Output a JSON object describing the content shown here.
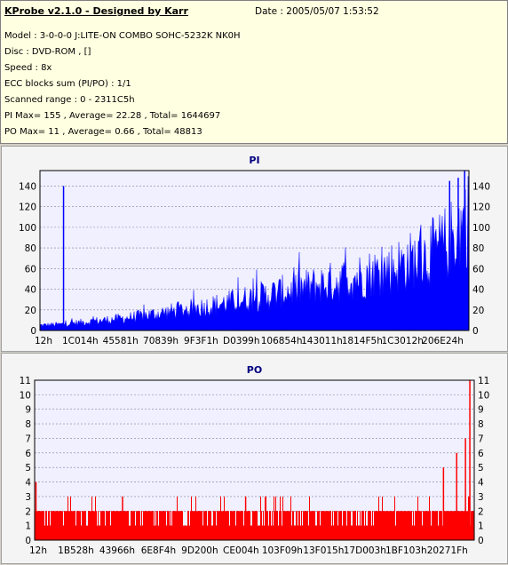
{
  "header": {
    "title": "KProbe v2.1.0 - Designed by Karr",
    "date": "Date : 2005/05/07 1:53:52",
    "model": "Model : 3-0-0-0 J:LITE-ON COMBO SOHC-5232K NK0H",
    "disc": "Disc : DVD-ROM ,  []",
    "speed": "Speed : 8x",
    "ecc": "ECC blocks sum (PI/PO) : 1/1",
    "range": "Scanned range : 0 - 2311C5h",
    "pi_summary": "PI Max= 155 , Average= 22.28 , Total= 1644697",
    "po_summary": "PO Max= 11 , Average= 0.66 , Total= 48813"
  },
  "chart_data": [
    {
      "type": "area",
      "title": "PI",
      "color": "#0000ff",
      "ylim": [
        0,
        155
      ],
      "yticks": [
        0,
        20,
        40,
        60,
        80,
        100,
        120,
        140
      ],
      "xtick_labels": [
        "12h",
        "1C014h",
        "45581h",
        "70839h",
        "9F3F1h",
        "D0399h",
        "106854h",
        "143011h",
        "1814F5h",
        "1C3012h",
        "206E24h"
      ],
      "xlim": [
        0,
        100
      ],
      "profile_x": [
        0,
        5,
        10,
        20,
        30,
        40,
        50,
        60,
        70,
        80,
        90,
        95,
        100
      ],
      "profile_y": [
        5,
        6,
        8,
        12,
        18,
        24,
        32,
        40,
        48,
        58,
        72,
        85,
        110
      ],
      "spikes": [
        {
          "x": 5.5,
          "y": 140
        },
        {
          "x": 99.0,
          "y": 155
        },
        {
          "x": 97.5,
          "y": 148
        },
        {
          "x": 95.5,
          "y": 145
        }
      ],
      "grid": true
    },
    {
      "type": "bar",
      "title": "PO",
      "color": "#ff0000",
      "ylim": [
        0,
        11
      ],
      "yticks": [
        0,
        1,
        2,
        3,
        4,
        5,
        6,
        7,
        8,
        9,
        10,
        11
      ],
      "xtick_labels": [
        "12h",
        "1B528h",
        "43966h",
        "6E8F4h",
        "9D200h",
        "CE004h",
        "103F09h",
        "13F015h",
        "17D003h",
        "1BF103h",
        "20271Fh"
      ],
      "xlim": [
        0,
        100
      ],
      "baseline_level": 2,
      "spikes": [
        {
          "x": 0.3,
          "y": 4
        },
        {
          "x": 98.0,
          "y": 7
        },
        {
          "x": 99.0,
          "y": 11
        },
        {
          "x": 96.0,
          "y": 6
        },
        {
          "x": 93.0,
          "y": 5
        },
        {
          "x": 48.0,
          "y": 3
        },
        {
          "x": 20.0,
          "y": 3
        }
      ],
      "grid": true
    }
  ]
}
